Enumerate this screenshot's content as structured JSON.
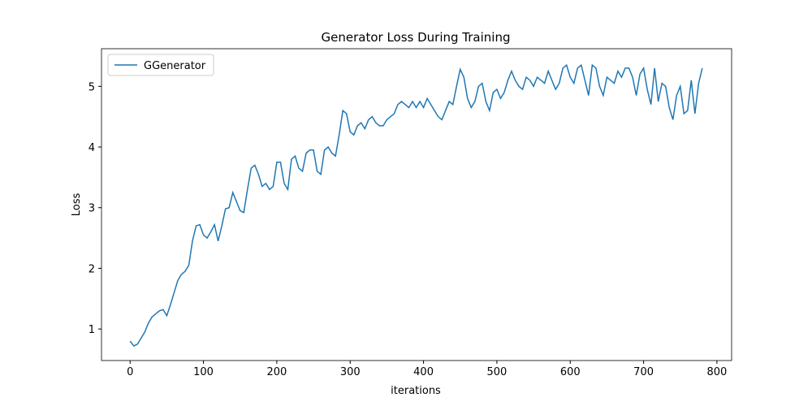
{
  "chart_data": {
    "type": "line",
    "title": "Generator Loss During Training",
    "x_label": "iterations",
    "y_label": "Loss",
    "x": [
      0,
      5,
      10,
      15,
      20,
      25,
      30,
      35,
      40,
      45,
      50,
      55,
      60,
      65,
      70,
      75,
      80,
      85,
      90,
      95,
      100,
      105,
      110,
      115,
      120,
      125,
      130,
      135,
      140,
      145,
      150,
      155,
      160,
      165,
      170,
      175,
      180,
      185,
      190,
      195,
      200,
      205,
      210,
      215,
      220,
      225,
      230,
      235,
      240,
      245,
      250,
      255,
      260,
      265,
      270,
      275,
      280,
      285,
      290,
      295,
      300,
      305,
      310,
      315,
      320,
      325,
      330,
      335,
      340,
      345,
      350,
      355,
      360,
      365,
      370,
      375,
      380,
      385,
      390,
      395,
      400,
      405,
      410,
      415,
      420,
      425,
      430,
      435,
      440,
      445,
      450,
      455,
      460,
      465,
      470,
      475,
      480,
      485,
      490,
      495,
      500,
      505,
      510,
      515,
      520,
      525,
      530,
      535,
      540,
      545,
      550,
      555,
      560,
      565,
      570,
      575,
      580,
      585,
      590,
      595,
      600,
      605,
      610,
      615,
      620,
      625,
      630,
      635,
      640,
      645,
      650,
      655,
      660,
      665,
      670,
      675,
      680,
      685,
      690,
      695,
      700,
      705,
      710,
      715,
      720,
      725,
      730,
      735,
      740,
      745,
      750,
      755,
      760,
      765,
      770,
      775,
      780
    ],
    "series": [
      {
        "name": "GGenerator",
        "color": "#1f77b4",
        "values": [
          0.8,
          0.72,
          0.75,
          0.85,
          0.95,
          1.1,
          1.2,
          1.25,
          1.3,
          1.32,
          1.22,
          1.4,
          1.6,
          1.8,
          1.9,
          1.95,
          2.05,
          2.45,
          2.7,
          2.72,
          2.55,
          2.5,
          2.6,
          2.72,
          2.45,
          2.7,
          2.98,
          3.0,
          3.25,
          3.1,
          2.95,
          2.92,
          3.3,
          3.65,
          3.7,
          3.55,
          3.35,
          3.4,
          3.3,
          3.35,
          3.75,
          3.75,
          3.4,
          3.3,
          3.8,
          3.85,
          3.65,
          3.6,
          3.9,
          3.95,
          3.95,
          3.6,
          3.55,
          3.95,
          4.0,
          3.9,
          3.85,
          4.2,
          4.6,
          4.55,
          4.25,
          4.2,
          4.35,
          4.4,
          4.3,
          4.45,
          4.5,
          4.4,
          4.35,
          4.35,
          4.45,
          4.5,
          4.55,
          4.7,
          4.75,
          4.7,
          4.65,
          4.75,
          4.65,
          4.75,
          4.65,
          4.8,
          4.7,
          4.6,
          4.5,
          4.45,
          4.6,
          4.75,
          4.7,
          5.0,
          5.28,
          5.15,
          4.8,
          4.65,
          4.75,
          5.0,
          5.05,
          4.75,
          4.6,
          4.9,
          4.95,
          4.8,
          4.9,
          5.1,
          5.25,
          5.1,
          5.0,
          4.95,
          5.15,
          5.1,
          5.0,
          5.15,
          5.1,
          5.05,
          5.25,
          5.1,
          4.95,
          5.05,
          5.3,
          5.35,
          5.15,
          5.05,
          5.3,
          5.35,
          5.1,
          4.85,
          5.35,
          5.3,
          5.0,
          4.85,
          5.15,
          5.1,
          5.05,
          5.25,
          5.15,
          5.3,
          5.3,
          5.15,
          4.85,
          5.2,
          5.3,
          4.95,
          4.7,
          5.3,
          4.75,
          5.05,
          5.0,
          4.65,
          4.45,
          4.85,
          5.0,
          4.55,
          4.6,
          5.1,
          4.55,
          5.05,
          5.3
        ]
      }
    ],
    "xlim": [
      -39,
      820
    ],
    "ylim": [
      0.48,
      5.62
    ],
    "xticks": [
      0,
      100,
      200,
      300,
      400,
      500,
      600,
      700,
      800
    ],
    "yticks": [
      1,
      2,
      3,
      4,
      5
    ],
    "legend": "upper left"
  }
}
